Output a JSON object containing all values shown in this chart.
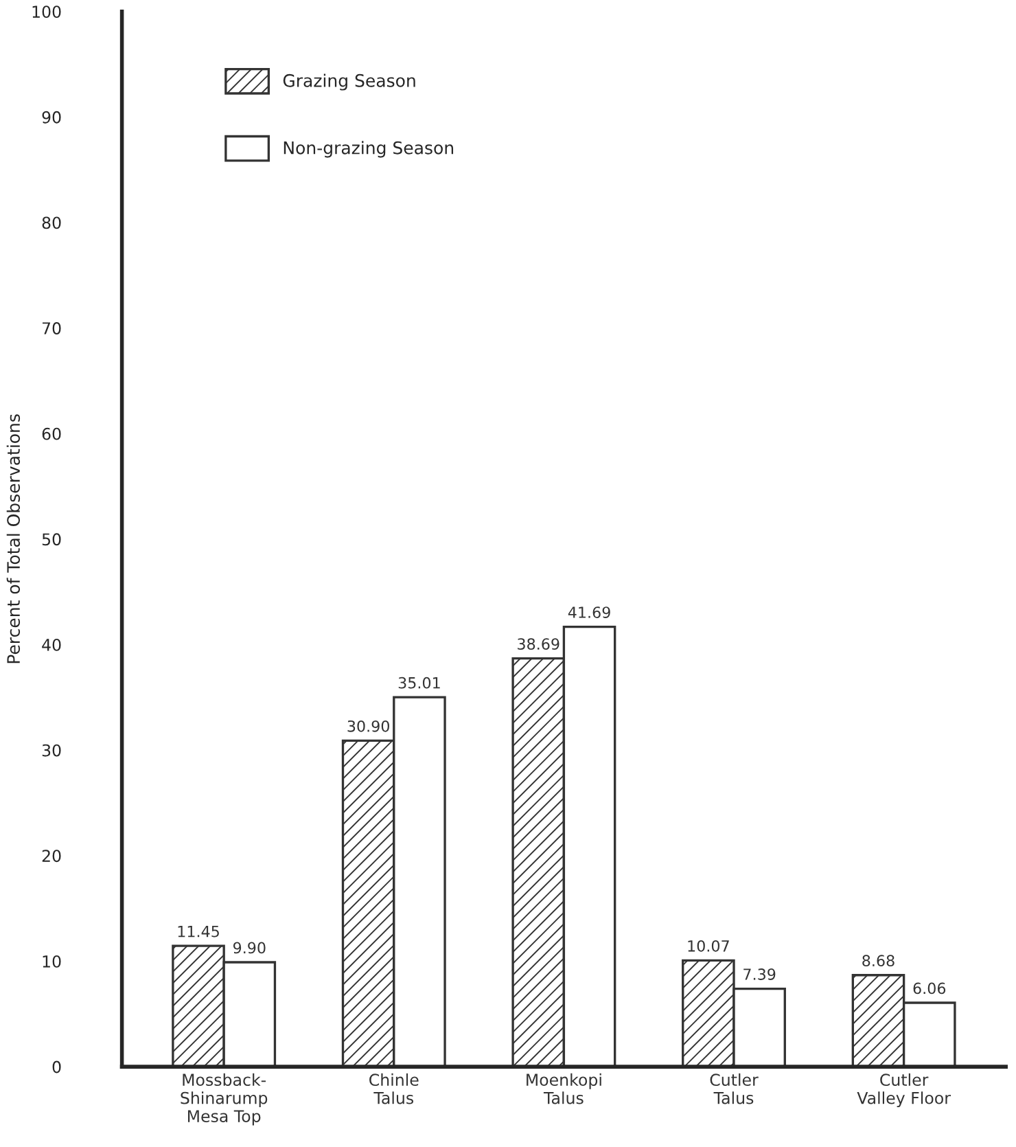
{
  "chart_data": {
    "type": "bar",
    "ylabel": "Percent of Total Observations",
    "categories": [
      "Mossback-\nShinarump\nMesa Top",
      "Chinle\nTalus",
      "Moenkopi\nTalus",
      "Cutler\nTalus",
      "Cutler\nValley Floor"
    ],
    "series": [
      {
        "name": "Grazing Season",
        "color": "#333333",
        "values": [
          11.45,
          30.9,
          38.69,
          10.07,
          8.68
        ],
        "value_labels": [
          "11.45",
          "30.90",
          "38.69",
          "10.07",
          "8.68"
        ]
      },
      {
        "name": "Non-grazing Season",
        "color": "#ffffff",
        "values": [
          9.9,
          35.01,
          41.69,
          7.39,
          6.06
        ],
        "value_labels": [
          "9.90",
          "35.01",
          "41.69",
          "7.39",
          "6.06"
        ]
      }
    ],
    "ylim": [
      0,
      100
    ],
    "yticks": [
      0,
      10,
      20,
      30,
      40,
      50,
      60,
      70,
      80,
      90,
      100
    ],
    "grid": false,
    "legend": "top left"
  }
}
